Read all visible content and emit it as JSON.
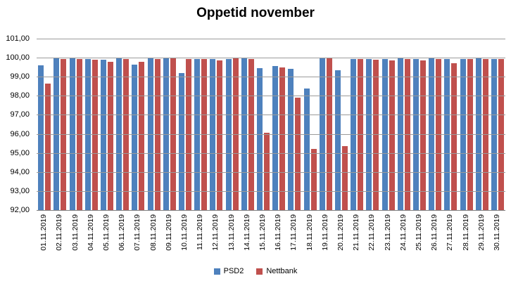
{
  "chart_data": {
    "type": "bar",
    "title": "Oppetid november",
    "categories": [
      "01.11.2019",
      "02.11.2019",
      "03.11.2019",
      "04.11.2019",
      "05.11.2019",
      "06.11.2019",
      "07.11.2019",
      "08.11.2019",
      "09.11.2019",
      "10.11.2019",
      "11.11.2019",
      "12.11.2019",
      "13.11.2019",
      "14.11.2019",
      "15.11.2019",
      "16.11.2019",
      "17.11.2019",
      "18.11.2019",
      "19.11.2019",
      "20.11.2019",
      "21.11.2019",
      "22.11.2019",
      "23.11.2019",
      "24.11.2019",
      "25.11.2019",
      "26.11.2019",
      "27.11.2019",
      "28.11.2019",
      "29.11.2019",
      "30.11.2019"
    ],
    "series": [
      {
        "name": "PSD2",
        "color": "#4e81bd",
        "values": [
          99.6,
          100.0,
          100.0,
          99.95,
          99.9,
          100.0,
          99.65,
          100.0,
          100.0,
          99.2,
          99.95,
          99.95,
          99.95,
          100.0,
          99.45,
          99.55,
          99.4,
          98.4,
          100.0,
          99.35,
          99.95,
          99.95,
          99.95,
          100.0,
          99.95,
          100.0,
          99.95,
          99.95,
          100.0,
          99.95
        ]
      },
      {
        "name": "Nettbank",
        "color": "#c0504d",
        "values": [
          98.65,
          99.95,
          99.95,
          99.9,
          99.8,
          99.95,
          99.8,
          99.95,
          100.0,
          99.95,
          99.95,
          99.85,
          100.0,
          99.95,
          96.05,
          99.5,
          97.9,
          95.2,
          100.0,
          95.35,
          99.95,
          99.9,
          99.85,
          99.95,
          99.85,
          99.95,
          99.7,
          99.95,
          99.95,
          99.95
        ]
      }
    ],
    "ylim": [
      92,
      101
    ],
    "ytick_step": 1,
    "ytick_labels_top_to_bottom": [
      "101,00",
      "100,00",
      "99,00",
      "98,00",
      "97,00",
      "96,00",
      "95,00",
      "94,00",
      "93,00",
      "92,00"
    ],
    "grid": true,
    "legend_position": "bottom",
    "colors": {
      "gridline": "#9b9b9b",
      "axis_line": "#7f7f7f",
      "text": "#000000",
      "background": "#ffffff"
    }
  }
}
